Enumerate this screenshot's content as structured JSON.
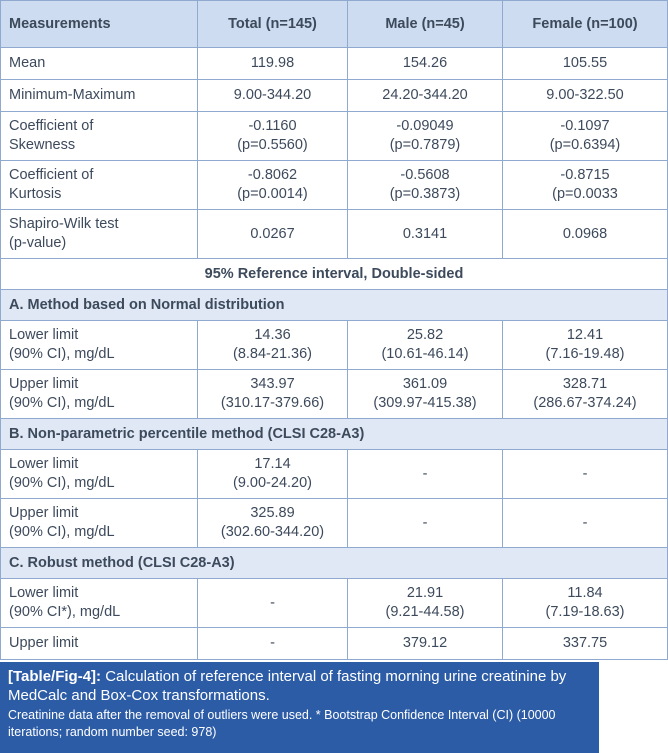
{
  "table": {
    "header": [
      "Measurements",
      "Total (n=145)",
      "Male (n=45)",
      "Female (n=100)"
    ],
    "rows": [
      [
        "Mean",
        "119.98",
        "154.26",
        "105.55"
      ],
      [
        "Minimum-Maximum",
        "9.00-344.20",
        "24.20-344.20",
        "9.00-322.50"
      ],
      [
        "Coefficient of\nSkewness",
        "-0.1160\n(p=0.5560)",
        "-0.09049\n(p=0.7879)",
        "-0.1097\n(p=0.6394)"
      ],
      [
        "Coefficient of\nKurtosis",
        "-0.8062\n(p=0.0014)",
        "-0.5608\n(p=0.3873)",
        "-0.8715\n(p=0.0033"
      ],
      [
        "Shapiro-Wilk test\n(p-value)",
        "0.0267",
        "0.3141",
        "0.0968"
      ],
      [
        "95% Reference interval, Double-sided"
      ],
      [
        "A. Method based on Normal distribution"
      ],
      [
        "Lower limit\n(90% CI), mg/dL",
        "14.36\n(8.84-21.36)",
        "25.82\n(10.61-46.14)",
        "12.41\n(7.16-19.48)"
      ],
      [
        "Upper limit\n(90% CI), mg/dL",
        "343.97\n(310.17-379.66)",
        "361.09\n(309.97-415.38)",
        "328.71\n(286.67-374.24)"
      ],
      [
        "B. Non-parametric percentile method (CLSI C28-A3)"
      ],
      [
        "Lower limit\n(90% CI), mg/dL",
        "17.14\n(9.00-24.20)",
        "-",
        "-"
      ],
      [
        "Upper limit\n(90% CI), mg/dL",
        "325.89\n(302.60-344.20)",
        "-",
        "-"
      ],
      [
        "C. Robust method (CLSI C28-A3)"
      ],
      [
        "Lower limit\n(90% CI*), mg/dL",
        "-",
        "21.91\n(9.21-44.58)",
        "11.84\n(7.19-18.63)"
      ],
      [
        "Upper limit",
        "-",
        "379.12",
        "337.75"
      ]
    ]
  },
  "caption": {
    "label": "[Table/Fig-4]:",
    "title": "Calculation of reference interval of fasting morning urine creatinine by MedCalc and Box-Cox transformations.",
    "note": "Creatinine data after the removal of outliers were used. * Bootstrap Confidence Interval (CI) (10000 iterations; random number seed: 978)"
  }
}
